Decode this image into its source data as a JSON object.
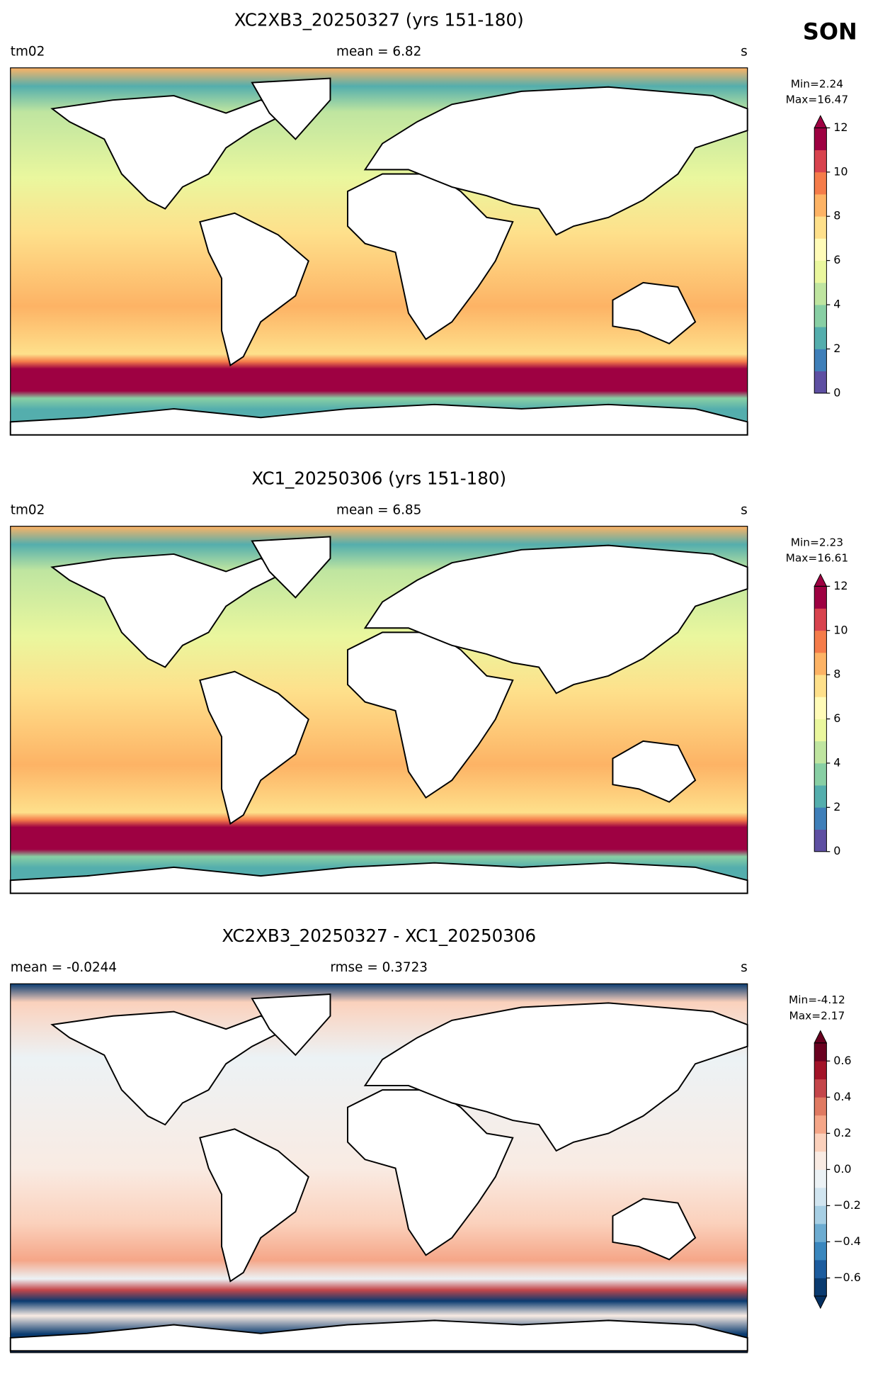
{
  "season": "SON",
  "panels": [
    {
      "title": "XC2XB3_20250327 (yrs 151-180)",
      "left": "tm02",
      "center": "mean = 6.82",
      "right": "s",
      "min": "Min=2.24",
      "max": "Max=16.47",
      "colorbar": {
        "lim": [
          0,
          12
        ],
        "ticks": [
          0,
          2,
          4,
          6,
          8,
          10,
          12
        ],
        "extend": "max",
        "over": "#9e0142",
        "colors": [
          "#5e4fa2",
          "#3f7fb9",
          "#54aead",
          "#88cfa4",
          "#bfe5a0",
          "#eaf79e",
          "#fffbb8",
          "#fee08b",
          "#fdb365",
          "#f57c4a",
          "#d8434e",
          "#9e0142"
        ]
      }
    },
    {
      "title": "XC1_20250306 (yrs 151-180)",
      "left": "tm02",
      "center": "mean = 6.85",
      "right": "s",
      "min": "Min=2.23",
      "max": "Max=16.61",
      "colorbar": {
        "lim": [
          0,
          12
        ],
        "ticks": [
          0,
          2,
          4,
          6,
          8,
          10,
          12
        ],
        "extend": "max",
        "over": "#9e0142",
        "colors": [
          "#5e4fa2",
          "#3f7fb9",
          "#54aead",
          "#88cfa4",
          "#bfe5a0",
          "#eaf79e",
          "#fffbb8",
          "#fee08b",
          "#fdb365",
          "#f57c4a",
          "#d8434e",
          "#9e0142"
        ]
      }
    },
    {
      "title": "XC2XB3_20250327 - XC1_20250306",
      "left": "mean = -0.0244",
      "center": "rmse = 0.3723",
      "right": "s",
      "min": "Min=-4.12",
      "max": "Max=2.17",
      "colorbar": {
        "lim": [
          -0.7,
          0.7
        ],
        "ticks": [
          {
            "value": -0.6,
            "label": "−0.6"
          },
          {
            "value": -0.4,
            "label": "−0.4"
          },
          {
            "value": -0.2,
            "label": "−0.2"
          },
          {
            "value": 0,
            "label": "0.0"
          },
          0.2,
          0.4,
          0.6
        ],
        "extend": "both",
        "under": "#053061",
        "over": "#67001f",
        "colors": [
          "#0a3b70",
          "#1c5c9e",
          "#3a87be",
          "#6dacd1",
          "#a7cfe4",
          "#d1e5f0",
          "#ecf2f5",
          "#f9ebe3",
          "#fbd1bc",
          "#f5a688",
          "#e07a62",
          "#c4464a",
          "#a21328",
          "#6a0120"
        ]
      }
    }
  ]
}
